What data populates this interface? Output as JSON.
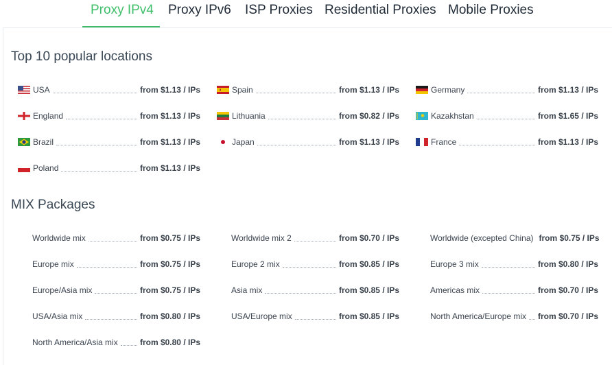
{
  "tabs": [
    {
      "label": "Proxy IPv4",
      "active": true
    },
    {
      "label": "Proxy IPv6",
      "active": false
    },
    {
      "label": "ISP Proxies",
      "active": false
    },
    {
      "label": "Residential Proxies",
      "active": false
    },
    {
      "label": "Mobile Proxies",
      "active": false
    }
  ],
  "colors": {
    "accent": "#3fbf6a",
    "text": "#333a44"
  },
  "popular": {
    "title": "Top 10 popular locations",
    "items": [
      {
        "name": "USA",
        "price": "from $1.13 / IPs",
        "flag": "us-flag-icon"
      },
      {
        "name": "Spain",
        "price": "from $1.13 / IPs",
        "flag": "es-flag-icon"
      },
      {
        "name": "Germany",
        "price": "from $1.13 / IPs",
        "flag": "de-flag-icon"
      },
      {
        "name": "England",
        "price": "from $1.13 / IPs",
        "flag": "gb-eng-flag-icon"
      },
      {
        "name": "Lithuania",
        "price": "from $0.82 / IPs",
        "flag": "lt-flag-icon"
      },
      {
        "name": "Kazakhstan",
        "price": "from $1.65 / IPs",
        "flag": "kz-flag-icon"
      },
      {
        "name": "Brazil",
        "price": "from $1.13 / IPs",
        "flag": "br-flag-icon"
      },
      {
        "name": "Japan",
        "price": "from $1.13 / IPs",
        "flag": "jp-flag-icon"
      },
      {
        "name": "France",
        "price": "from $1.13 / IPs",
        "flag": "fr-flag-icon"
      },
      {
        "name": "Poland",
        "price": "from $1.13 / IPs",
        "flag": "pl-flag-icon"
      }
    ]
  },
  "mix": {
    "title": "MIX Packages",
    "items": [
      {
        "name": "Worldwide mix",
        "price": "from $0.75 / IPs"
      },
      {
        "name": "Worldwide mix 2",
        "price": "from $0.70 / IPs"
      },
      {
        "name": "Worldwide (excepted China)",
        "price": "from $0.75 / IPs"
      },
      {
        "name": "Europe mix",
        "price": "from $0.75 / IPs"
      },
      {
        "name": "Europe 2 mix",
        "price": "from $0.85 / IPs"
      },
      {
        "name": "Europe 3 mix",
        "price": "from $0.80 / IPs"
      },
      {
        "name": "Europe/Asia mix",
        "price": "from $0.75 / IPs"
      },
      {
        "name": "Asia mix",
        "price": "from $0.85 / IPs"
      },
      {
        "name": "Americas mix",
        "price": "from $0.70 / IPs"
      },
      {
        "name": "USA/Asia mix",
        "price": "from $0.80 / IPs"
      },
      {
        "name": "USA/Europe mix",
        "price": "from $0.85 / IPs"
      },
      {
        "name": "North America/Europe mix",
        "price": "from $0.70 / IPs"
      },
      {
        "name": "North America/Asia mix",
        "price": "from $0.80 / IPs"
      }
    ]
  }
}
